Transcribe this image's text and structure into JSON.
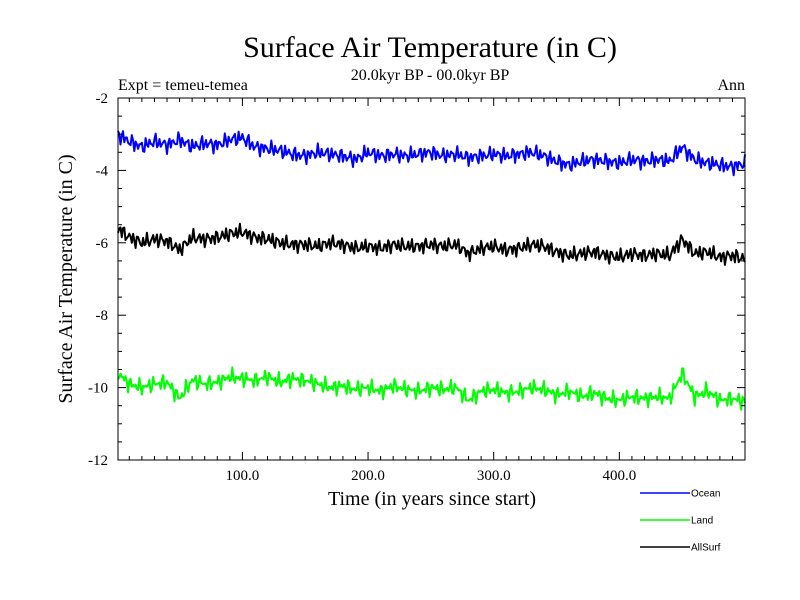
{
  "chart_data": {
    "type": "line",
    "title": "Surface Air Temperature (in C)",
    "subtitle": "20.0kyr BP - 00.0kyr BP",
    "expt_label": "Expt = temeu-temea",
    "period_label": "Ann",
    "xlabel": "Time (in years since start)",
    "ylabel": "Surface Air Temperature (in C)",
    "xlim": [
      1,
      500
    ],
    "ylim": [
      -12,
      -2
    ],
    "xticks": [
      100,
      200,
      300,
      400
    ],
    "xtick_labels": [
      "100.0",
      "200.0",
      "300.0",
      "400.0"
    ],
    "yticks": [
      -12,
      -10,
      -8,
      -6,
      -4,
      -2
    ],
    "ytick_labels": [
      "-12",
      "-10",
      "-8",
      "-6",
      "-4",
      "-2"
    ],
    "legend_position": "bottom-right, outside plot",
    "series": [
      {
        "name": "Ocean",
        "color": "#0000ff",
        "x": [
          1,
          10,
          20,
          30,
          40,
          50,
          60,
          70,
          80,
          90,
          100,
          110,
          120,
          130,
          140,
          150,
          160,
          170,
          180,
          190,
          200,
          210,
          220,
          230,
          240,
          250,
          260,
          270,
          280,
          290,
          300,
          310,
          320,
          330,
          340,
          350,
          360,
          370,
          380,
          390,
          400,
          410,
          420,
          430,
          440,
          450,
          460,
          470,
          480,
          490,
          500
        ],
        "values": [
          -3.0,
          -3.2,
          -3.35,
          -3.2,
          -3.3,
          -3.15,
          -3.35,
          -3.25,
          -3.3,
          -3.15,
          -3.1,
          -3.35,
          -3.4,
          -3.45,
          -3.55,
          -3.6,
          -3.5,
          -3.55,
          -3.6,
          -3.7,
          -3.5,
          -3.6,
          -3.55,
          -3.6,
          -3.55,
          -3.5,
          -3.6,
          -3.55,
          -3.65,
          -3.6,
          -3.55,
          -3.6,
          -3.55,
          -3.5,
          -3.6,
          -3.75,
          -3.85,
          -3.75,
          -3.7,
          -3.75,
          -3.8,
          -3.7,
          -3.75,
          -3.7,
          -3.75,
          -3.35,
          -3.7,
          -3.8,
          -3.85,
          -3.9,
          -3.8
        ]
      },
      {
        "name": "Land",
        "color": "#00ff00",
        "x": [
          1,
          10,
          20,
          30,
          40,
          50,
          60,
          70,
          80,
          90,
          100,
          110,
          120,
          130,
          140,
          150,
          160,
          170,
          180,
          190,
          200,
          210,
          220,
          230,
          240,
          250,
          260,
          270,
          280,
          290,
          300,
          310,
          320,
          330,
          340,
          350,
          360,
          370,
          380,
          390,
          400,
          410,
          420,
          430,
          440,
          450,
          460,
          470,
          480,
          490,
          500
        ],
        "values": [
          -9.6,
          -9.9,
          -10.0,
          -9.9,
          -9.85,
          -10.3,
          -9.8,
          -9.9,
          -9.85,
          -9.7,
          -9.75,
          -9.8,
          -9.7,
          -9.85,
          -9.75,
          -9.8,
          -9.9,
          -10.0,
          -9.95,
          -10.05,
          -10.0,
          -10.1,
          -9.95,
          -10.05,
          -10.1,
          -10.0,
          -10.05,
          -10.0,
          -10.35,
          -10.1,
          -10.05,
          -10.15,
          -10.1,
          -10.0,
          -10.05,
          -10.2,
          -10.1,
          -10.25,
          -10.15,
          -10.3,
          -10.35,
          -10.25,
          -10.3,
          -10.25,
          -10.3,
          -9.6,
          -10.25,
          -10.1,
          -10.35,
          -10.3,
          -10.4
        ]
      },
      {
        "name": "AllSurf",
        "color": "#000000",
        "x": [
          1,
          10,
          20,
          30,
          40,
          50,
          60,
          70,
          80,
          90,
          100,
          110,
          120,
          130,
          140,
          150,
          160,
          170,
          180,
          190,
          200,
          210,
          220,
          230,
          240,
          250,
          260,
          270,
          280,
          290,
          300,
          310,
          320,
          330,
          340,
          350,
          360,
          370,
          380,
          390,
          400,
          410,
          420,
          430,
          440,
          450,
          460,
          470,
          480,
          490,
          500
        ],
        "values": [
          -5.6,
          -5.85,
          -6.0,
          -5.9,
          -5.95,
          -6.2,
          -5.85,
          -5.9,
          -5.85,
          -5.75,
          -5.7,
          -5.85,
          -5.9,
          -6.0,
          -6.05,
          -6.05,
          -6.1,
          -6.0,
          -6.05,
          -6.15,
          -6.1,
          -6.15,
          -6.05,
          -6.1,
          -6.1,
          -6.05,
          -6.1,
          -6.05,
          -6.3,
          -6.15,
          -6.1,
          -6.2,
          -6.15,
          -6.05,
          -6.1,
          -6.25,
          -6.35,
          -6.3,
          -6.25,
          -6.35,
          -6.4,
          -6.3,
          -6.35,
          -6.3,
          -6.35,
          -5.9,
          -6.3,
          -6.25,
          -6.4,
          -6.35,
          -6.45
        ]
      }
    ]
  }
}
